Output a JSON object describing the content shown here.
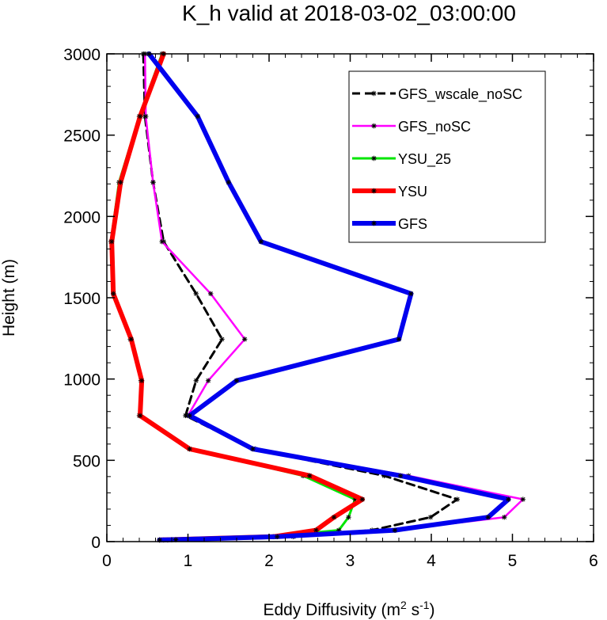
{
  "chart_data": {
    "type": "line",
    "title": "K_h valid at 2018-03-02_03:00:00",
    "xlabel": "Eddy Diffusivity (m",
    "xlabel_sup1": "2",
    "xlabel_mid": " s",
    "xlabel_sup2": "-1",
    "xlabel_end": ")",
    "ylabel": "Height (m)",
    "xlim": [
      0,
      6
    ],
    "ylim": [
      0,
      3000
    ],
    "xticks": [
      0,
      1,
      2,
      3,
      4,
      5,
      6
    ],
    "yticks": [
      0,
      500,
      1000,
      1500,
      2000,
      2500,
      3000
    ],
    "legend_position": "top-right",
    "series": [
      {
        "name": "GFS_wscale_noSC",
        "color": "#000000",
        "dash": "dashed",
        "width": 3,
        "points": [
          [
            0.75,
            10
          ],
          [
            0.85,
            12
          ],
          [
            2.3,
            30
          ],
          [
            3.27,
            70
          ],
          [
            3.99,
            150
          ],
          [
            4.32,
            260
          ],
          [
            3.42,
            405
          ],
          [
            1.8,
            570
          ],
          [
            0.97,
            775
          ],
          [
            1.1,
            990
          ],
          [
            1.42,
            1245
          ],
          [
            1.1,
            1525
          ],
          [
            0.7,
            1845
          ],
          [
            0.57,
            2210
          ],
          [
            0.47,
            2615
          ],
          [
            0.45,
            3000
          ]
        ]
      },
      {
        "name": "GFS_noSC",
        "color": "#ff00ff",
        "dash": "solid",
        "width": 2.5,
        "points": [
          [
            0.7,
            10
          ],
          [
            0.8,
            12
          ],
          [
            2.06,
            30
          ],
          [
            3.56,
            70
          ],
          [
            4.9,
            150
          ],
          [
            5.13,
            260
          ],
          [
            3.72,
            405
          ],
          [
            1.83,
            570
          ],
          [
            1.0,
            775
          ],
          [
            1.25,
            990
          ],
          [
            1.7,
            1245
          ],
          [
            1.28,
            1525
          ],
          [
            0.68,
            1845
          ],
          [
            0.57,
            2210
          ],
          [
            0.48,
            2615
          ],
          [
            0.47,
            3000
          ]
        ]
      },
      {
        "name": "YSU_25",
        "color": "#00e600",
        "dash": "solid",
        "width": 3,
        "points": [
          [
            0.65,
            10
          ],
          [
            0.8,
            12
          ],
          [
            2.0,
            30
          ],
          [
            2.86,
            70
          ],
          [
            2.98,
            150
          ],
          [
            3.06,
            260
          ],
          [
            2.42,
            405
          ],
          [
            1.02,
            570
          ],
          [
            0.4,
            775
          ],
          [
            0.42,
            990
          ],
          [
            0.29,
            1245
          ],
          [
            0.08,
            1525
          ],
          [
            0.05,
            1845
          ],
          [
            0.15,
            2210
          ],
          [
            0.4,
            2615
          ],
          [
            0.68,
            3000
          ]
        ]
      },
      {
        "name": "YSU",
        "color": "#ff0000",
        "dash": "solid",
        "width": 6,
        "points": [
          [
            0.65,
            10
          ],
          [
            0.8,
            12
          ],
          [
            2.05,
            30
          ],
          [
            2.58,
            70
          ],
          [
            2.8,
            150
          ],
          [
            3.15,
            260
          ],
          [
            2.5,
            405
          ],
          [
            1.02,
            570
          ],
          [
            0.41,
            775
          ],
          [
            0.43,
            990
          ],
          [
            0.3,
            1245
          ],
          [
            0.08,
            1525
          ],
          [
            0.06,
            1845
          ],
          [
            0.17,
            2210
          ],
          [
            0.41,
            2615
          ],
          [
            0.7,
            3000
          ]
        ]
      },
      {
        "name": "GFS",
        "color": "#0000ee",
        "dash": "solid",
        "width": 6,
        "points": [
          [
            0.65,
            10
          ],
          [
            0.85,
            12
          ],
          [
            2.1,
            30
          ],
          [
            3.55,
            70
          ],
          [
            4.7,
            150
          ],
          [
            4.95,
            260
          ],
          [
            3.62,
            405
          ],
          [
            1.8,
            570
          ],
          [
            1.02,
            775
          ],
          [
            1.6,
            990
          ],
          [
            3.6,
            1245
          ],
          [
            3.75,
            1525
          ],
          [
            1.9,
            1845
          ],
          [
            1.5,
            2210
          ],
          [
            1.12,
            2615
          ],
          [
            0.52,
            3000
          ]
        ]
      }
    ]
  }
}
